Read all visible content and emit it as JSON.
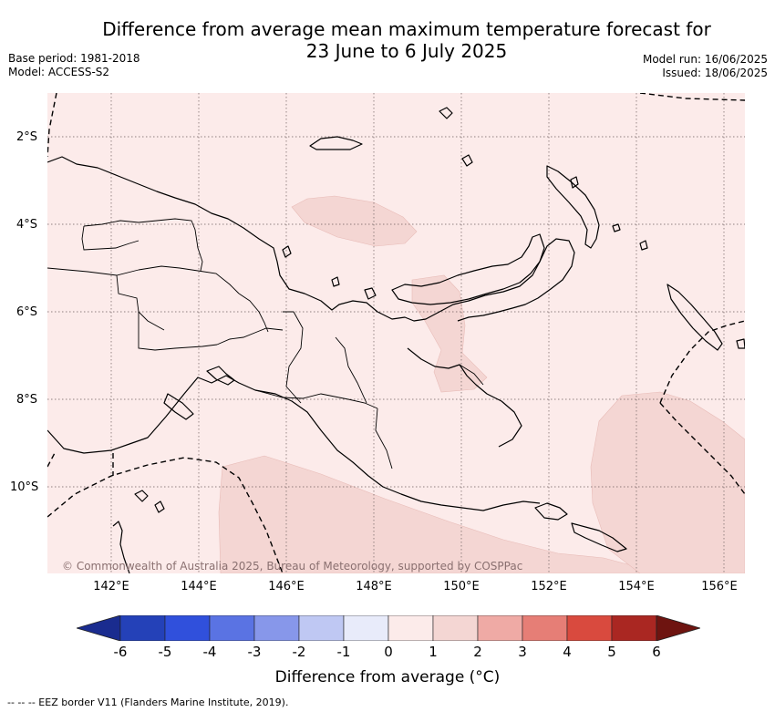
{
  "header": {
    "title_line1": "Difference from average mean maximum temperature forecast for",
    "title_line2": "23 June to 6 July 2025",
    "base_period": "Base period: 1981-2018",
    "model": "Model: ACCESS-S2",
    "model_run": "Model run: 16/06/2025",
    "issued": "Issued: 18/06/2025"
  },
  "map": {
    "lat_labels": [
      "2°S",
      "4°S",
      "6°S",
      "8°S",
      "10°S"
    ],
    "lon_labels": [
      "142°E",
      "144°E",
      "146°E",
      "148°E",
      "150°E",
      "152°E",
      "154°E",
      "156°E"
    ],
    "copyright": "© Commonwealth of Australia 2025, Bureau of Meteorology, supported by COSPPac",
    "background_color": "#fcebea",
    "anomaly_color": "#f4d6d3"
  },
  "colorbar": {
    "ticks": [
      "-6",
      "-5",
      "-4",
      "-3",
      "-2",
      "-1",
      "0",
      "1",
      "2",
      "3",
      "4",
      "5",
      "6"
    ],
    "colors": [
      "#1a2c8f",
      "#2441b8",
      "#3050dc",
      "#5a73e3",
      "#8797ea",
      "#bfc8f3",
      "#e8ebfa",
      "#fcebea",
      "#f4d6d3",
      "#efaaa5",
      "#e67e76",
      "#d94a3e",
      "#aa2722",
      "#6e1410"
    ],
    "title": "Difference from average (°C)"
  },
  "footer": {
    "legend": "--  --  -- EEZ border V11 (Flanders Marine Institute, 2019)."
  }
}
